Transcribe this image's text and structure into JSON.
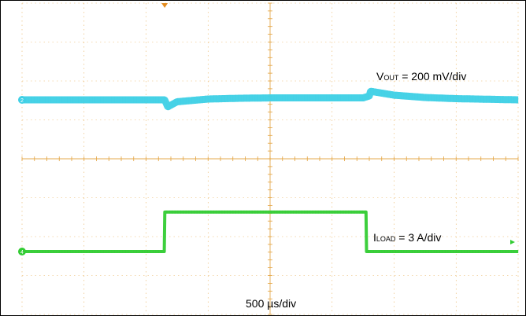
{
  "chart_data": {
    "type": "line",
    "timebase": "500 µs/div",
    "grid": true,
    "colors": {
      "grid": "#e3a13b",
      "vout": "#3fd0e6",
      "iload": "#33cc33",
      "marker": "#e38b1e"
    },
    "series": [
      {
        "name": "VOUT",
        "label_main": "V",
        "label_sub": "OUT",
        "label_rest": " = 200 mV/div",
        "channel": "2",
        "x_div": [
          0,
          2.3,
          2.35,
          2.5,
          3.0,
          3.5,
          4.0,
          5.5,
          5.6,
          5.62,
          6.0,
          6.5,
          7.0,
          8.0
        ],
        "y_div": [
          0,
          0,
          -0.18,
          -0.05,
          0.02,
          0.04,
          0.05,
          0.05,
          0.1,
          0.22,
          0.12,
          0.06,
          0.03,
          0
        ]
      },
      {
        "name": "ILOAD",
        "label_main": "I",
        "label_sub": "LOAD",
        "label_rest": " = 3 A/div",
        "channel": "4",
        "x_div": [
          0,
          2.3,
          2.3,
          5.55,
          5.55,
          8.0
        ],
        "y_div": [
          0,
          0,
          0.8,
          0.8,
          0,
          0
        ]
      }
    ]
  }
}
